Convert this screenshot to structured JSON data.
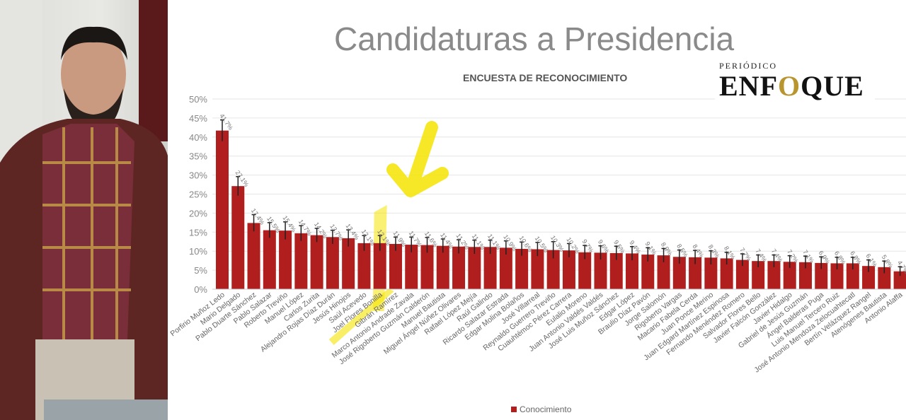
{
  "title": "Candidaturas a Presidencia",
  "logo": {
    "top": "PERIÓDICO",
    "main_prefix": "ENF",
    "main_o": "O",
    "main_suffix": "QUE"
  },
  "chart_data": {
    "type": "bar",
    "subtitle": "ENCUESTA DE RECONOCIMIENTO",
    "ylim": [
      0,
      50
    ],
    "yticks": [
      "0%",
      "5%",
      "10%",
      "15%",
      "20%",
      "25%",
      "30%",
      "35%",
      "40%",
      "45%",
      "50%"
    ],
    "grid": true,
    "legend_position": "bottom",
    "bar_color": "#b01e1e",
    "highlight_color": "#f5e400",
    "highlighted_category": "Joel Flores Bonilla",
    "categories": [
      "Porfirio Muñoz Ledo",
      "Mario Delgado",
      "Pablo Duarte Sánchez",
      "Pablo Salazar",
      "Roberto Treviño",
      "Manuel López",
      "Carlos Zurita",
      "Alejandro Rojas Díaz Durán",
      "Jesús Hinojos",
      "Saúl Acevedo",
      "Joel Flores Bonilla",
      "Gibrán Ramírez",
      "Marco Antonio Andrade  Zavala",
      "José Rigoberto Guzmán  Calderón",
      "Manuel Bautista",
      "Miguel Ángel Núñez Olivares",
      "Rafael López  Mejía",
      "Raúl Galindo",
      "Ricardo Salazar Estrada",
      "Edgar Molina Bolaños",
      "José Villarreal",
      "Reynaldo Guerrero Treviño",
      "Cuauhtémoc Pérez Carrera",
      "Eulalio Moreno",
      "Juan Antonio Valdés  Valdés",
      "José Luis Muñoz Sánchez",
      "Edgar López",
      "Braulio Díaz Pavón",
      "Jorge Salomón",
      "Rigoberto Vargas",
      "Macario Fabela  Cerda",
      "Juan Ponce Merino",
      "Juan Edgard Martínez Espinosa",
      "Fernando Menéndez Romero",
      "Salvador Flores  Bello",
      "Javier  Falcón  González",
      "Javier Hidalgo",
      "Gabriel de Jesús Guzmán",
      "Ángel Balderas  Puga",
      "Luis Manuel Tercero Ruiz",
      "José Antonio Mendoza  Zelocuahtecatl",
      "Bertín Velázquez Rangel",
      "Atenógenes Bautista",
      "Antonio Alaffa"
    ],
    "series": [
      {
        "name": "Conocimiento",
        "values": [
          41.7,
          27.1,
          17.4,
          15.5,
          15.4,
          14.7,
          14.2,
          13.7,
          13.4,
          12.1,
          12.1,
          11.9,
          11.7,
          11.6,
          11.4,
          11.2,
          11.1,
          11.1,
          10.9,
          10.6,
          10.5,
          10.3,
          10.2,
          9.7,
          9.6,
          9.5,
          9.4,
          9.1,
          8.9,
          8.5,
          8.4,
          8.3,
          8.1,
          7.7,
          7.4,
          7.4,
          7.2,
          7.1,
          6.9,
          6.8,
          6.8,
          6.1,
          5.8,
          4.7
        ],
        "labels": [
          "41.7%",
          "27.1%",
          "17.4%",
          "15.5%",
          "15.4%",
          "14.7%",
          "14.2%",
          "13.7%",
          "13.4%",
          "12.1%",
          "12.1%",
          "11.9%",
          "11.7%",
          "11.6%",
          "11.4%",
          "11.2%",
          "11.1%",
          "11.1%",
          "10.9%",
          "10.6%",
          "10.5%",
          "10.3%",
          "10.2%",
          "9.7%",
          "9.6%",
          "9.5%",
          "9.4%",
          "9.1%",
          "8.9%",
          "8.5%",
          "8.4%",
          "8.3%",
          "8.1%",
          "7.7%",
          "7.4%",
          "7.4%",
          "7.2%",
          "7.1%",
          "6.9%",
          "6.8%",
          "6.8%",
          "6.1%",
          "5.8%",
          "4.7%"
        ],
        "error": [
          2.8,
          2.5,
          2.2,
          2.0,
          2.3,
          2.0,
          1.8,
          1.8,
          2.2,
          2.0,
          2.0,
          1.8,
          2.0,
          2.0,
          1.8,
          1.8,
          1.8,
          1.8,
          1.8,
          1.8,
          1.8,
          2.2,
          1.8,
          1.8,
          1.8,
          1.8,
          1.8,
          1.8,
          1.8,
          1.8,
          1.8,
          1.8,
          1.6,
          1.6,
          1.6,
          1.6,
          1.6,
          1.6,
          1.6,
          1.6,
          1.6,
          1.6,
          1.6,
          1.2
        ]
      }
    ]
  }
}
